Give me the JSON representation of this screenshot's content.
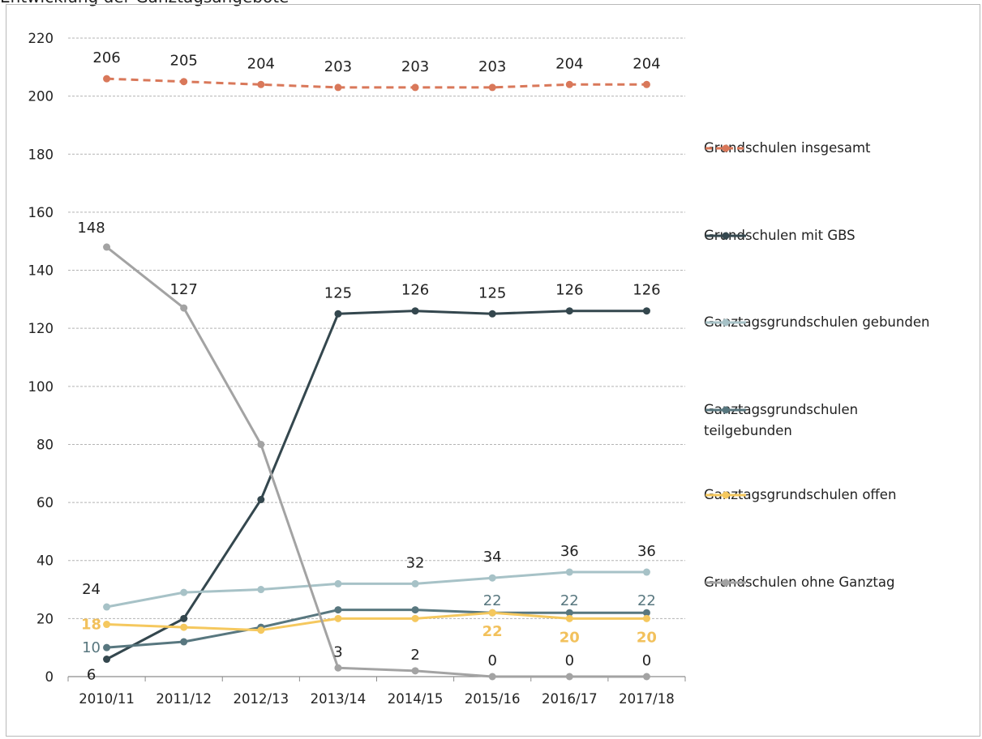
{
  "caption": "Entwicklung der Ganztagsangebote",
  "chart_data": {
    "type": "line",
    "categories": [
      "2010/11",
      "2011/12",
      "2012/13",
      "2013/14",
      "2014/15",
      "2015/16",
      "2016/17",
      "2017/18"
    ],
    "ylim": [
      0,
      220
    ],
    "yticks": [
      0,
      20,
      40,
      60,
      80,
      100,
      120,
      140,
      160,
      180,
      200,
      220
    ],
    "grid": true,
    "legend_position": "right",
    "series": [
      {
        "name": "Grundschulen insgesamt",
        "color": "#d9785a",
        "dashed": true,
        "values": [
          206,
          205,
          204,
          203,
          203,
          203,
          204,
          204
        ],
        "labels": [
          "206",
          "205",
          "204",
          "203",
          "203",
          "203",
          "204",
          "204"
        ]
      },
      {
        "name": "Grundschulen mit GBS",
        "color": "#34474e",
        "dashed": false,
        "values": [
          6,
          20,
          61,
          125,
          126,
          125,
          126,
          126
        ],
        "labels": [
          "6",
          "",
          "",
          "125",
          "126",
          "125",
          "126",
          "126"
        ]
      },
      {
        "name": "Ganztagsgrundschulen gebunden",
        "color": "#a7c2c7",
        "dashed": false,
        "values": [
          24,
          29,
          30,
          32,
          32,
          34,
          36,
          36
        ],
        "labels": [
          "24",
          "",
          "",
          "",
          "32",
          "34",
          "36",
          "36"
        ]
      },
      {
        "name": "Ganztagsgrundschulen teilgebunden",
        "color": "#58777f",
        "dashed": false,
        "values": [
          10,
          12,
          17,
          23,
          23,
          22,
          22,
          22
        ],
        "labels": [
          "10",
          "",
          "",
          "",
          "",
          "22",
          "22",
          "22"
        ]
      },
      {
        "name": "Ganztagsgrundschulen offen",
        "color": "#f5c85e",
        "dashed": false,
        "values": [
          18,
          17,
          16,
          20,
          20,
          22,
          20,
          20
        ],
        "labels": [
          "18",
          "",
          "",
          "",
          "",
          "22",
          "20",
          "20"
        ]
      },
      {
        "name": "Grundschulen ohne Ganztag",
        "color": "#a3a3a3",
        "dashed": false,
        "values": [
          148,
          127,
          80,
          3,
          2,
          0,
          0,
          0
        ],
        "labels": [
          "148",
          "127",
          "",
          "3",
          "2",
          "0",
          "0",
          "0"
        ]
      }
    ]
  }
}
